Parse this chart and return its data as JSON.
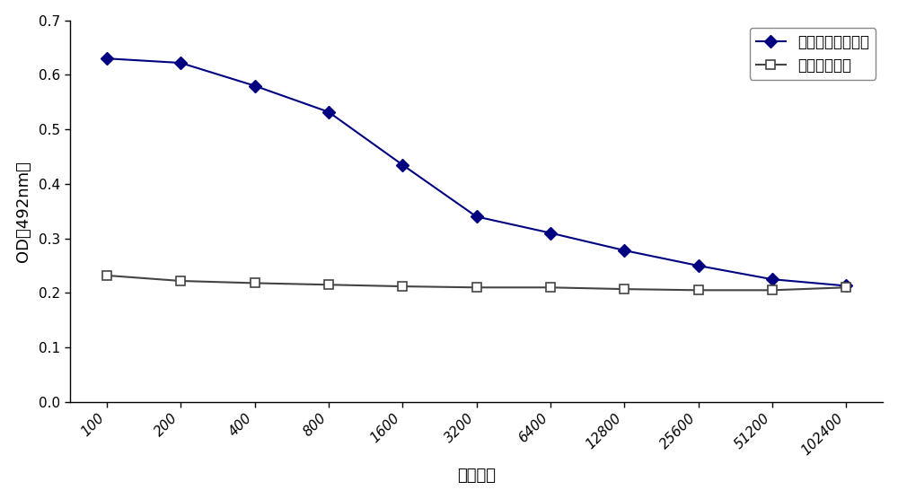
{
  "x_labels": [
    "100",
    "200",
    "400",
    "800",
    "1600",
    "3200",
    "6400",
    "12800",
    "25600",
    "51200",
    "102400"
  ],
  "x_positions": [
    0,
    1,
    2,
    3,
    4,
    5,
    6,
    7,
    8,
    9,
    10
  ],
  "series1_name": "第三次免疫的血清",
  "series1_values": [
    0.63,
    0.622,
    0.58,
    0.532,
    0.435,
    0.34,
    0.31,
    0.278,
    0.25,
    0.225,
    0.213
  ],
  "series1_color": "#000080",
  "series1_marker": "D",
  "series1_markersize": 7,
  "series2_name": "无免疫的血湯",
  "series2_values": [
    0.232,
    0.222,
    0.218,
    0.215,
    0.212,
    0.21,
    0.21,
    0.207,
    0.205,
    0.205,
    0.21
  ],
  "series2_color": "#444444",
  "series2_marker": "s",
  "series2_markersize": 7,
  "ylabel": "OD（492nm）",
  "xlabel": "稼释倍数",
  "ylim": [
    0,
    0.7
  ],
  "yticks": [
    0,
    0.1,
    0.2,
    0.3,
    0.4,
    0.5,
    0.6,
    0.7
  ],
  "background_color": "#ffffff",
  "legend_loc": "upper right",
  "axis_fontsize": 13,
  "tick_fontsize": 11,
  "legend_fontsize": 12,
  "line_width": 1.5
}
